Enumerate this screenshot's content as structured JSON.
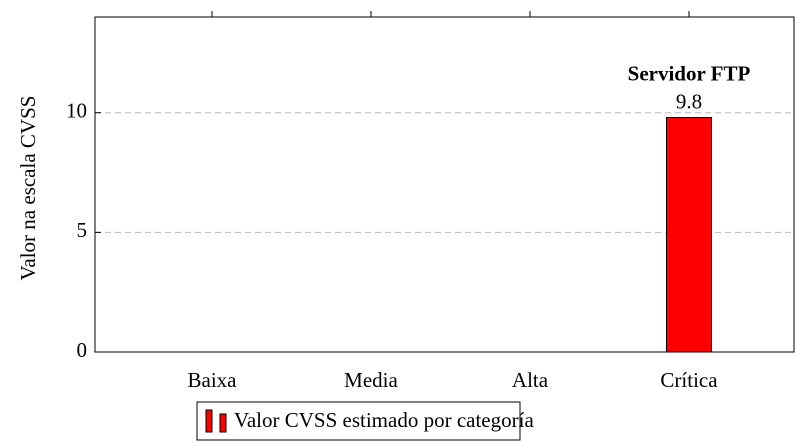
{
  "chart_data": {
    "type": "bar",
    "ylabel": "Valor na escala CVSS",
    "categories": [
      "Baixa",
      "Media",
      "Alta",
      "Crítica"
    ],
    "series": [
      {
        "name": "Valor CVSS estimado por categoría",
        "color": "#ff0000",
        "values": [
          0,
          0,
          0,
          9.8
        ]
      }
    ],
    "annotation": "Servidor FTP",
    "ylim": [
      0,
      14
    ],
    "yticks": [
      0,
      5,
      10
    ],
    "grid": true,
    "legend": "bottom"
  }
}
